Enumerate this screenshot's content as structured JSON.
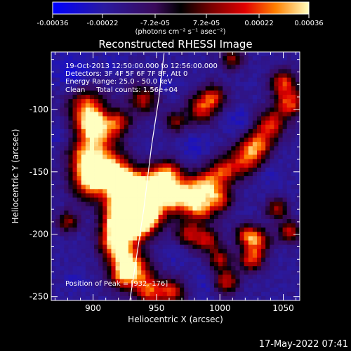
{
  "chart_data": {
    "type": "heatmap",
    "title": "Reconstructed RHESSI Image",
    "xlabel": "Heliocentric X (arcsec)",
    "ylabel": "Heliocentric Y (arcsec)",
    "xticks": [
      "900",
      "950",
      "1000",
      "1050"
    ],
    "xtick_values": [
      900,
      950,
      1000,
      1050
    ],
    "yticks": [
      "-100",
      "-150",
      "-200",
      "-250"
    ],
    "ytick_values": [
      -100,
      -150,
      -200,
      -250
    ],
    "xlim": [
      867,
      1063
    ],
    "ylim": [
      -253,
      -54
    ],
    "colorbar": {
      "ticks": [
        "-0.00036",
        "-0.00022",
        "-7.2e-05",
        "7.2e-05",
        "0.00022",
        "0.00036"
      ],
      "tick_values": [
        -0.00036,
        -0.00022,
        -7.2e-05,
        7.2e-05,
        0.00022,
        0.00036
      ],
      "range": [
        -0.00036,
        0.00036
      ],
      "units": "(photons cm⁻² s⁻¹ asec⁻²)"
    },
    "annotations": {
      "time_range": "19-Oct-2013 12:50:00.000 to 12:56:00.000",
      "detectors": "Detectors: 3F 4F 5F 6F 7F 8F, Att 0",
      "energy": "Energy Range: 25.0 - 50.0 keV",
      "method": "Clean     Total counts: 1.56e+04",
      "peak": "Position of Peak = [932,-176]"
    },
    "peak": [
      932,
      -176
    ],
    "limb": [
      [
        929,
        -253
      ],
      [
        934,
        -220
      ],
      [
        940,
        -180
      ],
      [
        946,
        -130
      ],
      [
        952,
        -90
      ],
      [
        956,
        -55
      ]
    ],
    "blobs": [
      {
        "x": 895,
        "y": -98,
        "r": 10,
        "v": 0.00022
      },
      {
        "x": 900,
        "y": -112,
        "r": 8,
        "v": 0.0002
      },
      {
        "x": 904,
        "y": -125,
        "r": 12,
        "v": 0.00018
      },
      {
        "x": 893,
        "y": -139,
        "r": 9,
        "v": 0.00016
      },
      {
        "x": 897,
        "y": -158,
        "r": 10,
        "v": 0.00026
      },
      {
        "x": 905,
        "y": -150,
        "r": 8,
        "v": 0.00022
      },
      {
        "x": 917,
        "y": -148,
        "r": 9,
        "v": 0.00014
      },
      {
        "x": 925,
        "y": -160,
        "r": 9,
        "v": 0.0002
      },
      {
        "x": 935,
        "y": -172,
        "r": 13,
        "v": 0.00036
      },
      {
        "x": 925,
        "y": -178,
        "r": 11,
        "v": 0.00033
      },
      {
        "x": 940,
        "y": -185,
        "r": 10,
        "v": 0.0003
      },
      {
        "x": 930,
        "y": -195,
        "r": 9,
        "v": 0.0002
      },
      {
        "x": 918,
        "y": -194,
        "r": 8,
        "v": 0.00016
      },
      {
        "x": 915,
        "y": -208,
        "r": 8,
        "v": 0.00015
      },
      {
        "x": 925,
        "y": -218,
        "r": 9,
        "v": 0.00018
      },
      {
        "x": 935,
        "y": -230,
        "r": 9,
        "v": 0.00014
      },
      {
        "x": 923,
        "y": -233,
        "r": 8,
        "v": 0.00016
      },
      {
        "x": 945,
        "y": -246,
        "r": 8,
        "v": 0.0002
      },
      {
        "x": 963,
        "y": -246,
        "r": 7,
        "v": 0.00017
      },
      {
        "x": 950,
        "y": -158,
        "r": 9,
        "v": 0.00018
      },
      {
        "x": 962,
        "y": -170,
        "r": 9,
        "v": 0.00016
      },
      {
        "x": 960,
        "y": -150,
        "r": 7,
        "v": 0.00012
      },
      {
        "x": 975,
        "y": -168,
        "r": 10,
        "v": 0.00022
      },
      {
        "x": 985,
        "y": -180,
        "r": 8,
        "v": 0.00016
      },
      {
        "x": 990,
        "y": -160,
        "r": 8,
        "v": 0.00018
      },
      {
        "x": 1003,
        "y": -150,
        "r": 8,
        "v": 0.00015
      },
      {
        "x": 1000,
        "y": -172,
        "r": 7,
        "v": 0.00014
      },
      {
        "x": 1020,
        "y": -140,
        "r": 9,
        "v": 0.00018
      },
      {
        "x": 1030,
        "y": -128,
        "r": 8,
        "v": 0.0002
      },
      {
        "x": 1040,
        "y": -112,
        "r": 8,
        "v": 0.00018
      },
      {
        "x": 1055,
        "y": -95,
        "r": 8,
        "v": 0.00022
      },
      {
        "x": 1050,
        "y": -78,
        "r": 7,
        "v": 0.00017
      },
      {
        "x": 985,
        "y": -100,
        "r": 8,
        "v": 0.00016
      },
      {
        "x": 995,
        "y": -90,
        "r": 7,
        "v": 0.00014
      },
      {
        "x": 975,
        "y": -200,
        "r": 7,
        "v": 0.00012
      },
      {
        "x": 990,
        "y": -205,
        "r": 7,
        "v": 0.00014
      },
      {
        "x": 1000,
        "y": -220,
        "r": 6,
        "v": 0.00012
      },
      {
        "x": 1020,
        "y": -200,
        "r": 6,
        "v": 0.00013
      },
      {
        "x": 1005,
        "y": -238,
        "r": 7,
        "v": 0.00016
      },
      {
        "x": 1025,
        "y": -220,
        "r": 7,
        "v": 0.0002
      },
      {
        "x": 1030,
        "y": -205,
        "r": 7,
        "v": 0.00018
      },
      {
        "x": 1055,
        "y": -198,
        "r": 6,
        "v": 0.00015
      },
      {
        "x": 1045,
        "y": -180,
        "r": 6,
        "v": 0.00012
      },
      {
        "x": 940,
        "y": -92,
        "r": 8,
        "v": 0.00014
      },
      {
        "x": 920,
        "y": -110,
        "r": 7,
        "v": 0.00012
      },
      {
        "x": 880,
        "y": -190,
        "r": 6,
        "v": 0.0001
      },
      {
        "x": 1010,
        "y": -60,
        "r": 6,
        "v": 0.0001
      },
      {
        "x": 965,
        "y": -110,
        "r": 6,
        "v": 8e-05
      }
    ],
    "dips": [
      {
        "x": 885,
        "y": -70,
        "r": 10,
        "v": -0.00012
      },
      {
        "x": 870,
        "y": -120,
        "r": 7,
        "v": -8e-05
      },
      {
        "x": 955,
        "y": -80,
        "r": 7,
        "v": -8e-05
      },
      {
        "x": 915,
        "y": -60,
        "r": 7,
        "v": -7e-05
      },
      {
        "x": 980,
        "y": -130,
        "r": 8,
        "v": -8e-05
      },
      {
        "x": 1015,
        "y": -110,
        "r": 7,
        "v": -9e-05
      },
      {
        "x": 1040,
        "y": -150,
        "r": 7,
        "v": -7e-05
      },
      {
        "x": 990,
        "y": -240,
        "r": 7,
        "v": -8e-05
      },
      {
        "x": 965,
        "y": -215,
        "r": 7,
        "v": -6e-05
      },
      {
        "x": 885,
        "y": -238,
        "r": 7,
        "v": -6e-05
      }
    ]
  },
  "timestamp": "17-May-2022 07:41"
}
